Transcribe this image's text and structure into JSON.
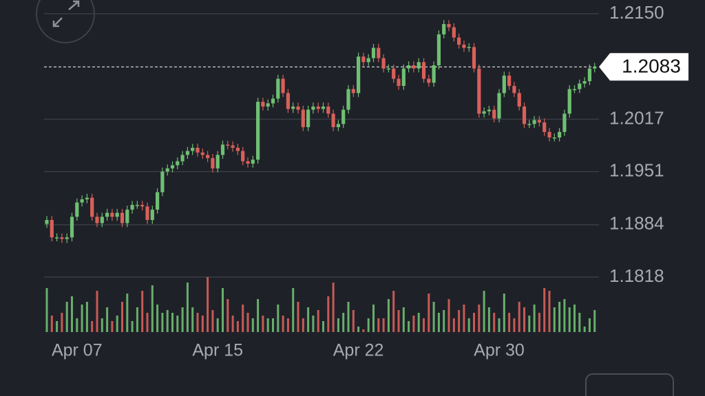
{
  "chart_data": {
    "type": "candlestick",
    "categories": [
      null,
      null,
      null,
      null,
      null,
      null,
      "Apr 07",
      null,
      null,
      null,
      null,
      null,
      null,
      null,
      null,
      null,
      null,
      null,
      null,
      null,
      null,
      null,
      null,
      null,
      null,
      null,
      null,
      null,
      null,
      null,
      null,
      null,
      null,
      null,
      "Apr 15",
      null,
      null,
      null,
      null,
      null,
      null,
      null,
      null,
      null,
      null,
      null,
      null,
      null,
      null,
      null,
      null,
      null,
      null,
      null,
      null,
      null,
      null,
      null,
      null,
      null,
      null,
      null,
      "Apr 22",
      null,
      null,
      null,
      null,
      null,
      null,
      null,
      null,
      null,
      null,
      null,
      null,
      null,
      null,
      null,
      null,
      null,
      null,
      null,
      null,
      null,
      null,
      null,
      null,
      null,
      null,
      null,
      "Apr 30",
      null,
      null,
      null,
      null,
      null,
      null,
      null,
      null,
      null,
      null,
      null,
      null,
      null,
      null,
      null,
      null,
      null,
      null,
      null
    ],
    "open": [
      1.1885,
      1.189,
      1.1868,
      1.1868,
      1.1866,
      1.1868,
      1.1894,
      1.1912,
      1.1916,
      1.1918,
      1.1894,
      1.1886,
      1.1894,
      1.1899,
      1.1894,
      1.1899,
      1.1886,
      1.1903,
      1.1909,
      1.1909,
      1.1907,
      1.189,
      1.1903,
      1.1925,
      1.1951,
      1.1955,
      1.1959,
      1.1964,
      1.1972,
      1.1977,
      1.1981,
      1.1975,
      1.1972,
      1.1968,
      1.1955,
      1.1972,
      1.1985,
      1.1984,
      1.1981,
      1.1977,
      1.1964,
      1.1961,
      1.1966,
      1.2039,
      1.2033,
      1.2037,
      1.2043,
      1.2068,
      1.205,
      1.203,
      1.2033,
      1.2029,
      1.2007,
      1.2029,
      1.2033,
      1.203,
      1.2033,
      1.2024,
      1.2007,
      1.2011,
      1.2029,
      1.2055,
      1.205,
      1.2096,
      1.2089,
      1.2094,
      1.2107,
      1.2094,
      1.2081,
      1.2081,
      1.2068,
      1.2059,
      1.2081,
      1.2085,
      1.2081,
      1.2089,
      1.2068,
      1.2063,
      1.2085,
      1.2124,
      1.2137,
      1.2133,
      1.212,
      1.2111,
      1.2107,
      1.2108,
      1.2081,
      1.2024,
      1.2027,
      1.2029,
      1.2018,
      1.205,
      1.2072,
      1.2059,
      1.205,
      1.2033,
      1.2011,
      1.2011,
      1.2016,
      1.2013,
      1.2001,
      1.1994,
      1.1994,
      1.2001,
      1.2024,
      1.2055,
      1.2055,
      1.2062,
      1.2065,
      1.2081
    ],
    "close": [
      1.189,
      1.1868,
      1.1868,
      1.1866,
      1.1868,
      1.1894,
      1.1912,
      1.1916,
      1.1918,
      1.1894,
      1.1886,
      1.1894,
      1.1899,
      1.1894,
      1.1899,
      1.1886,
      1.1903,
      1.1909,
      1.1909,
      1.1907,
      1.189,
      1.1903,
      1.1925,
      1.1951,
      1.1955,
      1.1959,
      1.1964,
      1.1972,
      1.1977,
      1.1981,
      1.1975,
      1.1972,
      1.1968,
      1.1955,
      1.1972,
      1.1985,
      1.1984,
      1.1981,
      1.1977,
      1.1964,
      1.1961,
      1.1966,
      1.2039,
      1.2033,
      1.2037,
      1.2043,
      1.2068,
      1.205,
      1.203,
      1.2033,
      1.2029,
      1.2007,
      1.2029,
      1.2033,
      1.203,
      1.2033,
      1.2024,
      1.2007,
      1.2011,
      1.2029,
      1.2055,
      1.205,
      1.2096,
      1.2089,
      1.2094,
      1.2107,
      1.2094,
      1.2081,
      1.2081,
      1.2068,
      1.2059,
      1.2081,
      1.2085,
      1.2081,
      1.2089,
      1.2068,
      1.2063,
      1.2085,
      1.2124,
      1.2137,
      1.2133,
      1.212,
      1.2111,
      1.2107,
      1.2108,
      1.2081,
      1.2024,
      1.2027,
      1.2029,
      1.2018,
      1.205,
      1.2072,
      1.2059,
      1.205,
      1.2033,
      1.2011,
      1.2011,
      1.2016,
      1.2013,
      1.2001,
      1.1994,
      1.1994,
      1.2001,
      1.2024,
      1.2055,
      1.2055,
      1.2062,
      1.2065,
      1.2081,
      1.2083
    ],
    "high": [
      1.1895,
      1.1895,
      1.1873,
      1.1873,
      1.1873,
      1.1899,
      1.1917,
      1.1921,
      1.1923,
      1.1923,
      1.1899,
      1.1899,
      1.1904,
      1.1904,
      1.1904,
      1.1904,
      1.1908,
      1.1914,
      1.1914,
      1.1914,
      1.1912,
      1.1908,
      1.193,
      1.1956,
      1.196,
      1.1964,
      1.1969,
      1.1977,
      1.1982,
      1.1986,
      1.1986,
      1.198,
      1.1977,
      1.1973,
      1.1977,
      1.199,
      1.199,
      1.1989,
      1.1986,
      1.1982,
      1.1969,
      1.1971,
      1.2044,
      1.2044,
      1.2042,
      1.2048,
      1.2073,
      1.2073,
      1.2055,
      1.2038,
      1.2038,
      1.2034,
      1.2034,
      1.2038,
      1.2038,
      1.2038,
      1.2038,
      1.2029,
      1.2016,
      1.2034,
      1.206,
      1.206,
      1.2101,
      1.2101,
      1.2099,
      1.2112,
      1.2112,
      1.2099,
      1.2086,
      1.2086,
      1.2073,
      1.2086,
      1.209,
      1.209,
      1.2094,
      1.2094,
      1.2073,
      1.209,
      1.2129,
      1.2142,
      1.2142,
      1.2138,
      1.2125,
      1.2116,
      1.2113,
      1.2113,
      1.2086,
      1.2032,
      1.2034,
      1.2034,
      1.2055,
      1.2077,
      1.2077,
      1.2064,
      1.2055,
      1.2038,
      1.2016,
      1.2021,
      1.2021,
      1.2018,
      1.2006,
      1.1999,
      1.2006,
      1.2029,
      1.206,
      1.206,
      1.2067,
      1.207,
      1.2086,
      1.2088
    ],
    "low": [
      1.188,
      1.1863,
      1.1863,
      1.1861,
      1.1861,
      1.1863,
      1.1889,
      1.1907,
      1.1911,
      1.1889,
      1.1881,
      1.1881,
      1.1889,
      1.1889,
      1.1889,
      1.1881,
      1.1881,
      1.1898,
      1.1904,
      1.1902,
      1.1885,
      1.1885,
      1.1898,
      1.192,
      1.1946,
      1.195,
      1.1954,
      1.1959,
      1.1967,
      1.1972,
      1.197,
      1.1967,
      1.1963,
      1.195,
      1.195,
      1.1967,
      1.1979,
      1.1976,
      1.1972,
      1.1959,
      1.1956,
      1.1956,
      1.1961,
      1.2028,
      1.2028,
      1.2032,
      1.2038,
      1.2045,
      1.2025,
      1.2025,
      1.2024,
      1.2002,
      1.2002,
      1.2024,
      1.2025,
      1.2025,
      1.2019,
      1.2002,
      1.2002,
      1.2006,
      1.2024,
      1.2045,
      1.2045,
      1.2084,
      1.2084,
      1.2089,
      1.2089,
      1.2076,
      1.2076,
      1.2063,
      1.2054,
      1.2054,
      1.2076,
      1.2076,
      1.2076,
      1.2063,
      1.2058,
      1.2058,
      1.208,
      1.2119,
      1.2128,
      1.2115,
      1.2106,
      1.2102,
      1.2102,
      1.2076,
      1.2019,
      1.2019,
      1.2022,
      1.2013,
      1.2013,
      1.2045,
      1.2054,
      1.2045,
      1.2028,
      1.2006,
      1.2006,
      1.2006,
      1.2008,
      1.1996,
      1.1989,
      1.1989,
      1.1989,
      1.1996,
      1.2019,
      1.205,
      1.205,
      1.2057,
      1.206,
      1.2076
    ],
    "volumes": [
      80,
      30,
      20,
      35,
      55,
      65,
      25,
      50,
      55,
      20,
      75,
      25,
      45,
      20,
      30,
      55,
      70,
      20,
      45,
      75,
      35,
      85,
      50,
      35,
      40,
      35,
      30,
      45,
      90,
      45,
      35,
      30,
      100,
      40,
      25,
      80,
      60,
      30,
      20,
      50,
      35,
      25,
      60,
      30,
      25,
      25,
      50,
      30,
      25,
      80,
      55,
      25,
      45,
      30,
      40,
      20,
      65,
      90,
      25,
      35,
      55,
      40,
      10,
      5,
      25,
      50,
      25,
      25,
      60,
      75,
      40,
      45,
      20,
      30,
      35,
      25,
      70,
      55,
      35,
      40,
      60,
      25,
      40,
      50,
      25,
      35,
      50,
      75,
      45,
      35,
      25,
      70,
      35,
      25,
      55,
      45,
      30,
      50,
      35,
      80,
      75,
      45,
      55,
      60,
      45,
      50,
      35,
      10,
      25,
      40
    ],
    "volume_lim": [
      0,
      100
    ],
    "up_color": "#6fbf73",
    "down_color": "#d9605a",
    "ylim": [
      1.1818,
      1.215
    ],
    "yticks": [
      {
        "value": 1.215,
        "label": "1.2150"
      },
      1.2017,
      1.1951,
      1.1884,
      1.1818
    ],
    "last_price": 1.2083,
    "grid": true
  }
}
